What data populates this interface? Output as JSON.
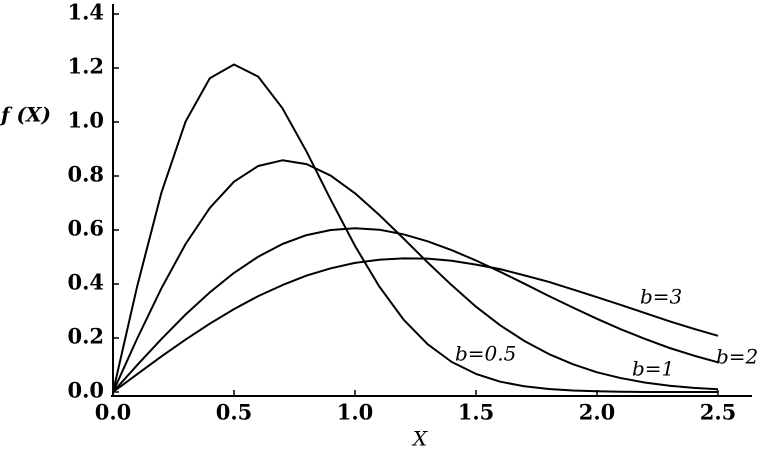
{
  "chart_data": {
    "type": "line",
    "xlabel": "X",
    "ylabel": "f (X)",
    "x": [
      0,
      0.1,
      0.2,
      0.3,
      0.4,
      0.5,
      0.6,
      0.7,
      0.8,
      0.9,
      1.0,
      1.1,
      1.2,
      1.3,
      1.4,
      1.5,
      1.6,
      1.7,
      1.8,
      1.9,
      2.0,
      2.1,
      2.2,
      2.3,
      2.4,
      2.5
    ],
    "series": [
      {
        "name": "b=0.5",
        "color": "#000000",
        "values": [
          0,
          0.392,
          0.738,
          1.002,
          1.162,
          1.213,
          1.168,
          1.051,
          0.89,
          0.712,
          0.541,
          0.391,
          0.269,
          0.177,
          0.111,
          0.067,
          0.038,
          0.021,
          0.011,
          0.0055,
          0.0027,
          0.001,
          0,
          0,
          0,
          0
        ]
      },
      {
        "name": "b=1",
        "color": "#000000",
        "values": [
          0,
          0.198,
          0.384,
          0.548,
          0.682,
          0.779,
          0.837,
          0.858,
          0.844,
          0.801,
          0.736,
          0.656,
          0.569,
          0.48,
          0.395,
          0.316,
          0.247,
          0.189,
          0.141,
          0.103,
          0.073,
          0.051,
          0.035,
          0.023,
          0.015,
          0.01
        ]
      },
      {
        "name": "b=2",
        "color": "#000000",
        "values": [
          0,
          0.0995,
          0.196,
          0.287,
          0.369,
          0.441,
          0.501,
          0.548,
          0.581,
          0.6,
          0.6065,
          0.601,
          0.584,
          0.558,
          0.525,
          0.487,
          0.445,
          0.401,
          0.356,
          0.313,
          0.271,
          0.232,
          0.196,
          0.163,
          0.135,
          0.11
        ]
      },
      {
        "name": "b=3",
        "color": "#000000",
        "values": [
          0,
          0.066,
          0.132,
          0.194,
          0.253,
          0.307,
          0.355,
          0.396,
          0.431,
          0.458,
          0.478,
          0.49,
          0.495,
          0.494,
          0.486,
          0.472,
          0.455,
          0.432,
          0.408,
          0.38,
          0.351,
          0.322,
          0.292,
          0.262,
          0.234,
          0.208
        ]
      }
    ],
    "xlim": [
      0,
      2.5
    ],
    "ylim": [
      0,
      1.4
    ],
    "xticks": [
      {
        "value": 0,
        "label": "0.0"
      },
      0.5,
      {
        "value": 1,
        "label": "1.0"
      },
      1.5,
      {
        "value": 2,
        "label": "2.0"
      },
      2.5
    ],
    "yticks": [
      {
        "value": 0,
        "label": "0.0"
      },
      0.2,
      0.4,
      0.6,
      0.8,
      {
        "value": 1,
        "label": "1.0"
      },
      1.2,
      1.4
    ],
    "grid": false
  }
}
